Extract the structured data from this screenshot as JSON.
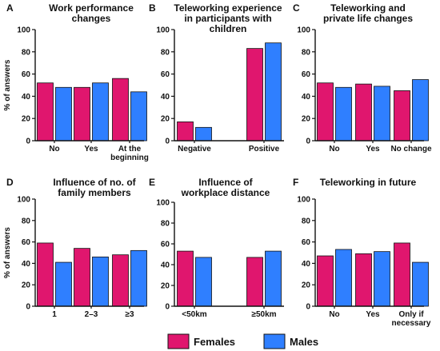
{
  "colors": {
    "females": "#e0166e",
    "males": "#2f7fff"
  },
  "legend": [
    {
      "key": "females",
      "label": "Females"
    },
    {
      "key": "males",
      "label": "Males"
    }
  ],
  "chart_data": [
    {
      "type": "bar",
      "letter": "A",
      "title": [
        "Work performance",
        "changes"
      ],
      "ylabel": "% of answers",
      "ylim": [
        0,
        100
      ],
      "yticks": [
        0,
        20,
        40,
        60,
        80,
        100
      ],
      "categories": [
        [
          "No"
        ],
        [
          "Yes"
        ],
        [
          "At the",
          "beginning"
        ]
      ],
      "series": [
        {
          "name": "Females",
          "values": [
            52,
            48,
            56
          ]
        },
        {
          "name": "Males",
          "values": [
            48,
            52,
            44
          ]
        }
      ]
    },
    {
      "type": "bar",
      "letter": "B",
      "title": [
        "Teleworking experience",
        "in participants with",
        "children"
      ],
      "ylabel": "",
      "ylim": [
        0,
        100
      ],
      "yticks": [
        0,
        20,
        40,
        60,
        80,
        100
      ],
      "categories": [
        [
          "Negative"
        ],
        [
          "Positive"
        ]
      ],
      "series": [
        {
          "name": "Females",
          "values": [
            17,
            83
          ]
        },
        {
          "name": "Males",
          "values": [
            12,
            88
          ]
        }
      ]
    },
    {
      "type": "bar",
      "letter": "C",
      "title": [
        "Teleworking and",
        "private life changes"
      ],
      "ylabel": "",
      "ylim": [
        0,
        100
      ],
      "yticks": [
        0,
        20,
        40,
        60,
        80,
        100
      ],
      "categories": [
        [
          "No"
        ],
        [
          "Yes"
        ],
        [
          "No change"
        ]
      ],
      "series": [
        {
          "name": "Females",
          "values": [
            52,
            51,
            45
          ]
        },
        {
          "name": "Males",
          "values": [
            48,
            49,
            55
          ]
        }
      ]
    },
    {
      "type": "bar",
      "letter": "D",
      "title": [
        "Influence of no. of",
        "family members"
      ],
      "ylabel": "% of answers",
      "ylim": [
        0,
        100
      ],
      "yticks": [
        0,
        20,
        40,
        60,
        80,
        100
      ],
      "categories": [
        [
          "1"
        ],
        [
          "2–3"
        ],
        [
          "≥3"
        ]
      ],
      "series": [
        {
          "name": "Females",
          "values": [
            59,
            54,
            48
          ]
        },
        {
          "name": "Males",
          "values": [
            41,
            46,
            52
          ]
        }
      ]
    },
    {
      "type": "bar",
      "letter": "E",
      "title": [
        "Influence of",
        "workplace distance"
      ],
      "ylabel": "",
      "ylim": [
        0,
        100
      ],
      "yticks": [
        0,
        20,
        40,
        60,
        80,
        100
      ],
      "categories": [
        [
          "<50km"
        ],
        [
          "≥50km"
        ]
      ],
      "series": [
        {
          "name": "Females",
          "values": [
            53,
            47
          ]
        },
        {
          "name": "Males",
          "values": [
            47,
            53
          ]
        }
      ]
    },
    {
      "type": "bar",
      "letter": "F",
      "title": [
        "Teleworking in future"
      ],
      "ylabel": "",
      "ylim": [
        0,
        100
      ],
      "yticks": [
        0,
        20,
        40,
        60,
        80,
        100
      ],
      "categories": [
        [
          "No"
        ],
        [
          "Yes"
        ],
        [
          "Only if",
          "necessary"
        ]
      ],
      "series": [
        {
          "name": "Females",
          "values": [
            47,
            49,
            59
          ]
        },
        {
          "name": "Males",
          "values": [
            53,
            51,
            41
          ]
        }
      ]
    }
  ]
}
